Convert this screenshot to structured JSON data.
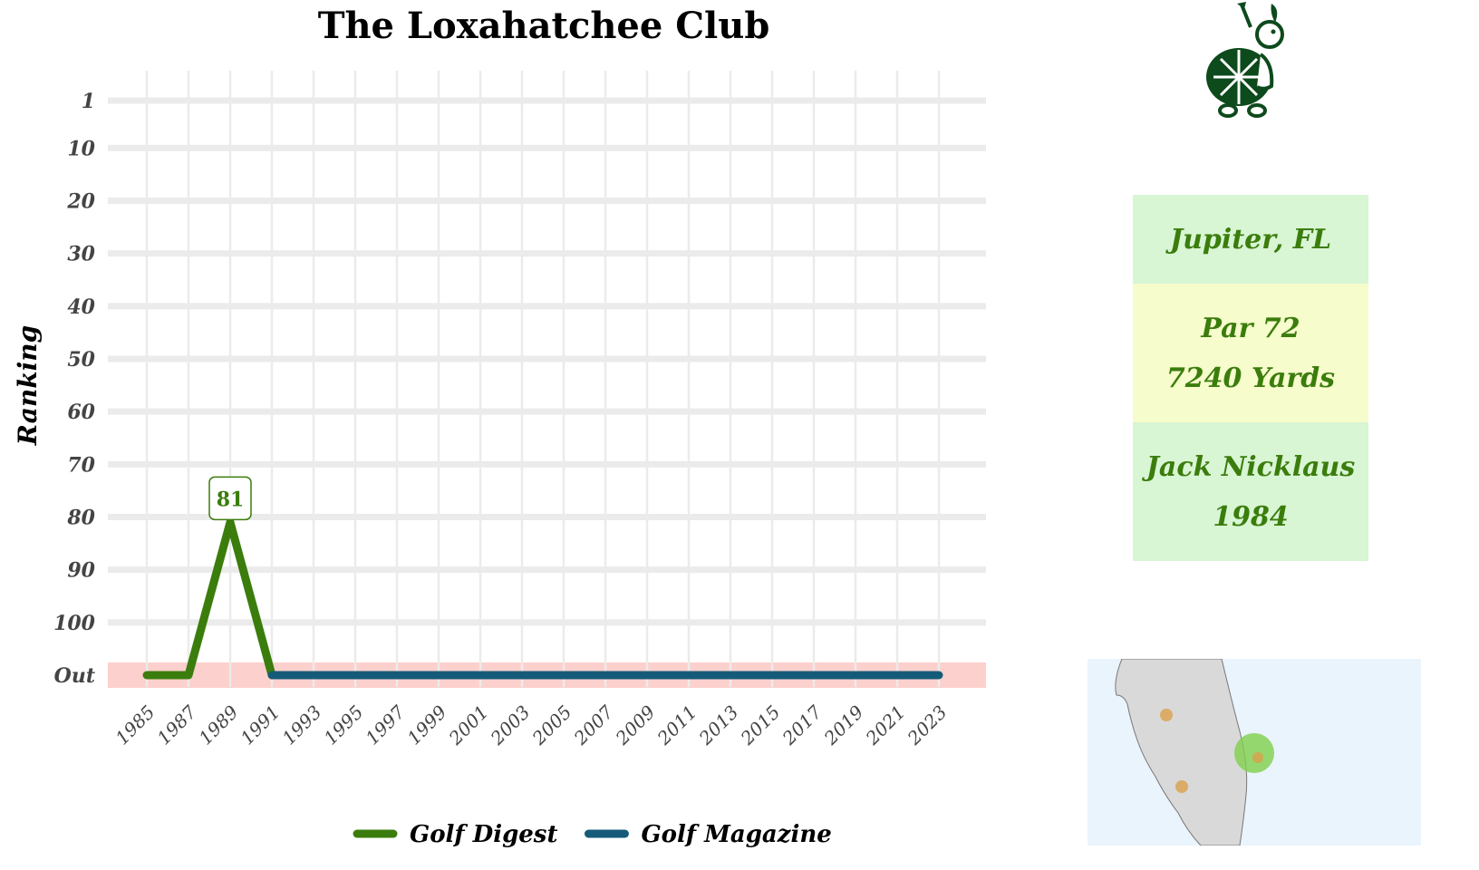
{
  "chart_data": {
    "type": "line",
    "title": "The Loxahatchee Club",
    "ylabel": "Ranking",
    "xlabel": "",
    "y_tick_labels": [
      "1",
      "10",
      "20",
      "30",
      "40",
      "50",
      "60",
      "70",
      "80",
      "90",
      "100",
      "Out"
    ],
    "y_tick_values": [
      1,
      10,
      20,
      30,
      40,
      50,
      60,
      70,
      80,
      90,
      100,
      110
    ],
    "y_out_value": 110,
    "y_reversed": true,
    "xlim": [
      1984,
      2025
    ],
    "x_tick_labels": [
      "1985",
      "1987",
      "1989",
      "1991",
      "1993",
      "1995",
      "1997",
      "1999",
      "2001",
      "2003",
      "2005",
      "2007",
      "2009",
      "2011",
      "2013",
      "2015",
      "2017",
      "2019",
      "2021",
      "2023"
    ],
    "series": [
      {
        "name": "Golf Digest",
        "color": "#3b7d0c",
        "x": [
          1985,
          1987,
          1989,
          1991
        ],
        "y": [
          "Out",
          "Out",
          81,
          "Out"
        ]
      },
      {
        "name": "Golf Magazine",
        "color": "#165a7a",
        "x": [
          1991,
          2023
        ],
        "y": [
          "Out",
          "Out"
        ]
      }
    ],
    "annotations": [
      {
        "x": 1989,
        "y": 81,
        "text": "81",
        "series": "Golf Digest"
      }
    ],
    "out_band_color": "#fcd0cd",
    "grid": true,
    "legend_position": "bottom"
  },
  "info": {
    "location": "Jupiter, FL",
    "par": "Par 72",
    "yards": "7240 Yards",
    "designer": "Jack Nicklaus",
    "year": "1984",
    "text_color": "#3b7d0c",
    "colors": {
      "green_box": "#d8f5d4",
      "yellow_box": "#f6fccc"
    }
  },
  "logo": {
    "icon": "turtle-golfer-icon",
    "color": "#0d4a1c"
  },
  "map": {
    "region": "Florida",
    "background": "#eaf4fd",
    "land_color": "#d9d9d9",
    "highlight_color": "#7fd04b",
    "other_marker_color": "#d9a04b"
  }
}
